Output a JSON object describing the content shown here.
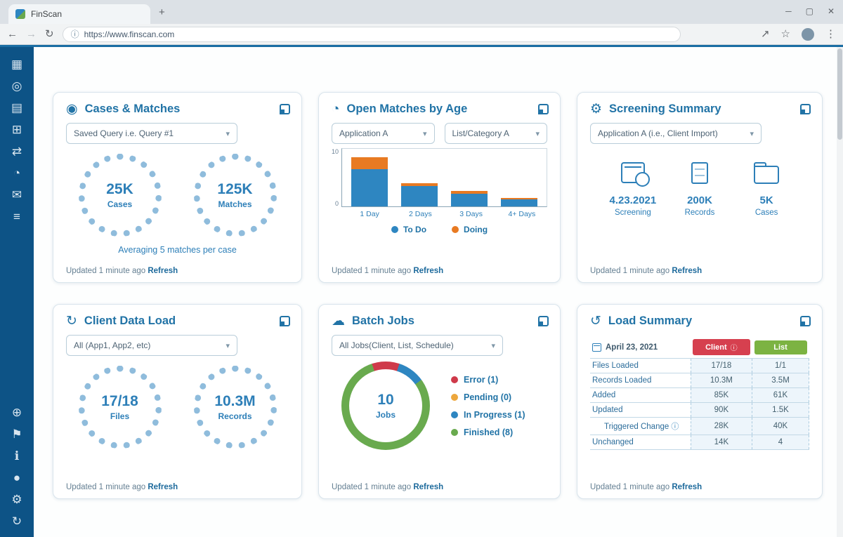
{
  "browser": {
    "tab_title": "FinScan",
    "new_tab": "+",
    "back": "←",
    "forward": "→",
    "reload": "↻",
    "site_info": "ⓘ",
    "url": "https://www.finscan.com",
    "share": "↗",
    "star": "☆",
    "menu_dots": "⋮",
    "minimize": "─",
    "maximize": "▢",
    "close": "✕"
  },
  "sidebar": {
    "top_items": [
      {
        "name": "dashboard",
        "glyph": "▦"
      },
      {
        "name": "search",
        "glyph": "◎"
      },
      {
        "name": "cases",
        "glyph": "▤"
      },
      {
        "name": "matches",
        "glyph": "⊞"
      },
      {
        "name": "data-transfer",
        "glyph": "⇄"
      },
      {
        "name": "activity",
        "glyph": "◔"
      },
      {
        "name": "messages",
        "glyph": "✉"
      },
      {
        "name": "lists",
        "glyph": "≡"
      }
    ],
    "bottom_items": [
      {
        "name": "add",
        "glyph": "⊕"
      },
      {
        "name": "flags",
        "glyph": "⚑"
      },
      {
        "name": "help",
        "glyph": "ℹ"
      },
      {
        "name": "profile",
        "glyph": "●"
      },
      {
        "name": "settings",
        "glyph": "⚙"
      },
      {
        "name": "sync",
        "glyph": "↻"
      }
    ]
  },
  "cards": {
    "cases": {
      "title": "Cases & Matches",
      "icon_glyph": "◉",
      "filter": "Saved Query i.e. Query #1",
      "stats": [
        {
          "value": "25K",
          "label": "Cases"
        },
        {
          "value": "125K",
          "label": "Matches"
        }
      ],
      "note": "Averaging 5 matches per case",
      "updated": "Updated 1 minute ago ",
      "refresh": "Refresh"
    },
    "open_matches": {
      "title": "Open Matches by Age",
      "icon_glyph": "◔",
      "filter1": "Application A",
      "filter2": "List/Category A",
      "updated": "Updated 1 minute ago ",
      "refresh": "Refresh"
    },
    "screening": {
      "title": "Screening Summary",
      "icon_glyph": "⚙",
      "filter": "Application A (i.e., Client Import)",
      "stats": [
        {
          "value": "4.23.2021",
          "label": "Screening",
          "icon": "calendar-clock-icon"
        },
        {
          "value": "200K",
          "label": "Records",
          "icon": "document-icon"
        },
        {
          "value": "5K",
          "label": "Cases",
          "icon": "folder-icon"
        }
      ],
      "updated": "Updated 1 minute ago ",
      "refresh": "Refresh"
    },
    "client_data_load": {
      "title": "Client Data Load",
      "icon_glyph": "↻",
      "filter": "All (App1, App2, etc)",
      "stats": [
        {
          "value": "17/18",
          "label": "Files"
        },
        {
          "value": "10.3M",
          "label": "Records"
        }
      ],
      "updated": "Updated 1 minute ago ",
      "refresh": "Refresh"
    },
    "batch_jobs": {
      "title": "Batch Jobs",
      "icon_glyph": "☁",
      "filter": "All Jobs(Client, List, Schedule)",
      "updated": "Updated 1 minute ago ",
      "refresh": "Refresh"
    },
    "load_summary": {
      "title": "Load Summary",
      "icon_glyph": "↺",
      "date": "April 23, 2021",
      "col_client": "Client",
      "col_client_icon": "ⓘ",
      "col_list": "List",
      "col_client_color": "#d6404f",
      "col_list_color": "#7cb342",
      "rows": [
        {
          "label": "Files Loaded",
          "client": "17/18",
          "list": "1/1",
          "indent": false,
          "info": false
        },
        {
          "label": "Records Loaded",
          "client": "10.3M",
          "list": "3.5M",
          "indent": false,
          "info": false
        },
        {
          "label": "Added",
          "client": "85K",
          "list": "61K",
          "indent": false,
          "info": false
        },
        {
          "label": "Updated",
          "client": "90K",
          "list": "1.5K",
          "indent": false,
          "info": false
        },
        {
          "label": "Triggered Change",
          "client": "28K",
          "list": "40K",
          "indent": true,
          "info": true
        },
        {
          "label": "Unchanged",
          "client": "14K",
          "list": "4",
          "indent": false,
          "info": false
        }
      ],
      "updated": "Updated 1 minute ago ",
      "refresh": "Refresh"
    }
  },
  "chart_data": [
    {
      "type": "bar",
      "stacked": true,
      "title": "Open Matches by Age",
      "categories": [
        "1 Day",
        "2 Days",
        "3 Days",
        "4+ Days"
      ],
      "series": [
        {
          "name": "To Do",
          "color": "#2e86c1",
          "values": [
            6.5,
            3.5,
            2.2,
            1.2
          ]
        },
        {
          "name": "Doing",
          "color": "#e87a22",
          "values": [
            2.0,
            0.5,
            0.5,
            0.3
          ]
        }
      ],
      "xlabel": "",
      "ylabel": "",
      "ylim": [
        0,
        10
      ],
      "yticks": [
        "10",
        "0"
      ],
      "grid": false,
      "legend_position": "bottom"
    },
    {
      "type": "pie",
      "title": "Batch Jobs",
      "center_value": "10",
      "center_label": "Jobs",
      "slices": [
        {
          "label": "Error (1)",
          "value": 1,
          "color": "#cf3a4a"
        },
        {
          "label": "Pending (0)",
          "value": 0,
          "color": "#eda73c"
        },
        {
          "label": "In Progress (1)",
          "value": 1,
          "color": "#2e86c1"
        },
        {
          "label": "Finished (8)",
          "value": 8,
          "color": "#69aa4e"
        }
      ],
      "legend_position": "right"
    }
  ],
  "colors": {
    "accent_blue": "#2173a6",
    "sidebar_bg": "#0d5386",
    "page_topline": "#1a6da3",
    "ring": "#8fbcdc",
    "badge_red": "#d6404f",
    "badge_green": "#7cb342"
  }
}
